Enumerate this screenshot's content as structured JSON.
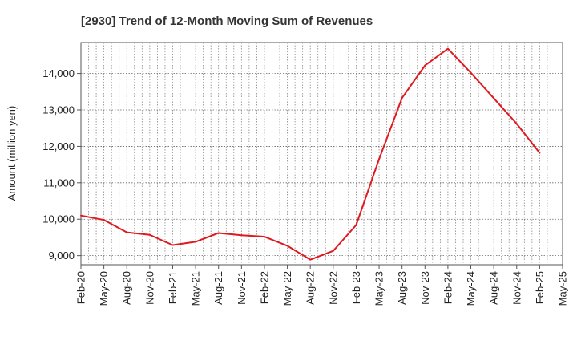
{
  "chart_data": {
    "type": "line",
    "title": "[2930]  Trend of 12-Month Moving Sum of Revenues",
    "xlabel": "",
    "ylabel": "Amount (million yen)",
    "x_ticks": [
      "Feb-20",
      "May-20",
      "Aug-20",
      "Nov-20",
      "Feb-21",
      "May-21",
      "Aug-21",
      "Nov-21",
      "Feb-22",
      "May-22",
      "Aug-22",
      "Nov-22",
      "Feb-23",
      "May-23",
      "Aug-23",
      "Nov-23",
      "Feb-24",
      "May-24",
      "Aug-24",
      "Nov-24",
      "Feb-25",
      "May-25"
    ],
    "y_ticks": [
      9000,
      10000,
      11000,
      12000,
      13000,
      14000
    ],
    "y_tick_labels": [
      "9,000",
      "10,000",
      "11,000",
      "12,000",
      "13,000",
      "14,000"
    ],
    "ylim": [
      8750,
      14850
    ],
    "grid": true,
    "line_color": "#e0191e",
    "series": [
      {
        "x": [
          "Feb-20",
          "May-20",
          "Aug-20",
          "Nov-20",
          "Feb-21",
          "May-21",
          "Aug-21",
          "Nov-21",
          "Feb-22",
          "May-22",
          "Aug-22",
          "Nov-22",
          "Feb-23",
          "May-23",
          "Aug-23",
          "Nov-23",
          "Feb-24",
          "May-24",
          "Aug-24",
          "Nov-24",
          "Feb-25"
        ],
        "values": [
          10100,
          9980,
          9640,
          9570,
          9290,
          9380,
          9620,
          9560,
          9520,
          9270,
          8890,
          9130,
          9840,
          11650,
          13330,
          14220,
          14680,
          14020,
          13320,
          12620,
          11820
        ]
      }
    ]
  }
}
